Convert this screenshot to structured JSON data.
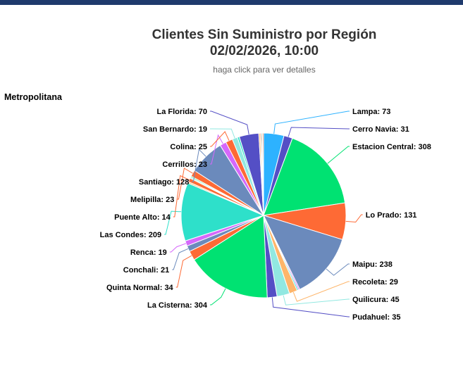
{
  "header": {
    "title_line1": "Clientes Sin Suministro por Región",
    "title_line2": "02/02/2026, 10:00",
    "subtitle": "haga click para ver detalles"
  },
  "region_label": "Metropolitana",
  "chart_data": {
    "type": "pie",
    "title": "Clientes Sin Suministro por Región 02/02/2026, 10:00",
    "subtitle": "haga click para ver detalles",
    "slices": [
      {
        "name": "Lampa",
        "value": 73,
        "color": "#2db2ff"
      },
      {
        "name": "Cerro Navia",
        "value": 31,
        "color": "#544fc5"
      },
      {
        "name": "Estacion Central",
        "value": 308,
        "color": "#00e272"
      },
      {
        "name": "Lo Prado",
        "value": 131,
        "color": "#fe6a35"
      },
      {
        "name": "Maipu",
        "value": 238,
        "color": "#6b8abc"
      },
      {
        "name": "",
        "value": 5,
        "color": "#d568fb"
      },
      {
        "name": "",
        "value": 5,
        "color": "#2ee0ca"
      },
      {
        "name": "Recoleta",
        "value": 29,
        "color": "#feb56a"
      },
      {
        "name": "Quilicura",
        "value": 45,
        "color": "#91e8e1"
      },
      {
        "name": "Pudahuel",
        "value": 35,
        "color": "#544fc5"
      },
      {
        "name": "La Cisterna",
        "value": 304,
        "color": "#00e272"
      },
      {
        "name": "Quinta Normal",
        "value": 34,
        "color": "#fe6a35"
      },
      {
        "name": "Conchali",
        "value": 21,
        "color": "#6b8abc"
      },
      {
        "name": "Renca",
        "value": 19,
        "color": "#d568fb"
      },
      {
        "name": "Las Condes",
        "value": 209,
        "color": "#2ee0ca"
      },
      {
        "name": "",
        "value": 5,
        "color": "#feb56a"
      },
      {
        "name": "Puente Alto",
        "value": 14,
        "color": "#fe6a35"
      },
      {
        "name": "",
        "value": 4,
        "color": "#91e8e1"
      },
      {
        "name": "",
        "value": 4,
        "color": "#00e272"
      },
      {
        "name": "Melipilla",
        "value": 23,
        "color": "#fe6a35"
      },
      {
        "name": "Santiago",
        "value": 128,
        "color": "#6b8abc"
      },
      {
        "name": "Cerrillos",
        "value": 23,
        "color": "#d568fb"
      },
      {
        "name": "Colina",
        "value": 25,
        "color": "#fe6a35"
      },
      {
        "name": "San Bernardo",
        "value": 19,
        "color": "#91e8e1"
      },
      {
        "name": "",
        "value": 7,
        "color": "#2ee0ca"
      },
      {
        "name": "La Florida",
        "value": 70,
        "color": "#544fc5"
      },
      {
        "name": "",
        "value": 5,
        "color": "#feb56a"
      },
      {
        "name": "",
        "value": 4,
        "color": "#fe6a35"
      },
      {
        "name": "",
        "value": 4,
        "color": "#91e8e1"
      },
      {
        "name": "",
        "value": 4,
        "color": "#fe6a35"
      }
    ]
  }
}
